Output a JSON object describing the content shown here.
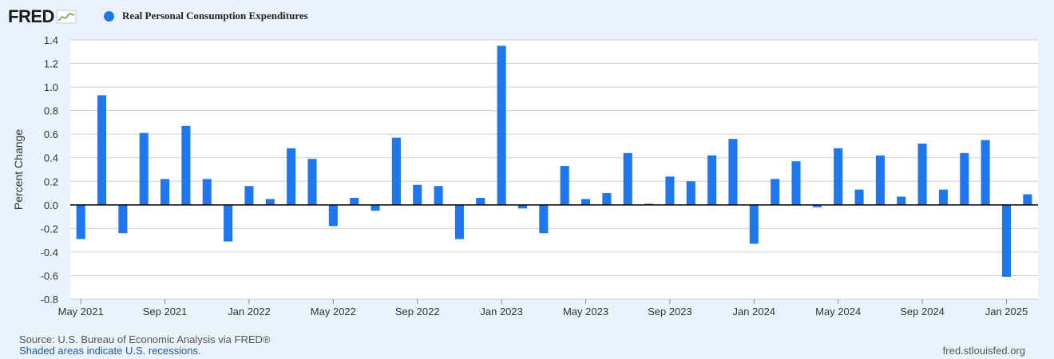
{
  "logo": {
    "text": "FRED"
  },
  "legend": {
    "label": "Real Personal Consumption Expenditures",
    "color": "#1f77f0"
  },
  "footer": {
    "source": "Source: U.S. Bureau of Economic Analysis via FRED®",
    "note": "Shaded areas indicate U.S. recessions.",
    "url": "fred.stlouisfed.org"
  },
  "chart_data": {
    "type": "bar",
    "ylabel": "Percent Change",
    "ylim": [
      -0.8,
      1.4
    ],
    "yticks": [
      1.4,
      1.2,
      1.0,
      0.8,
      0.6,
      0.4,
      0.2,
      0.0,
      -0.2,
      -0.4,
      -0.6,
      -0.8
    ],
    "ytick_labels": [
      "1.4",
      "1.2",
      "1.0",
      "0.8",
      "0.6",
      "0.4",
      "0.2",
      "0.0",
      "-0.2",
      "-0.4",
      "-0.6",
      "-0.8"
    ],
    "xtick_labels": [
      "May 2021",
      "Sep 2021",
      "Jan 2022",
      "May 2022",
      "Sep 2022",
      "Jan 2023",
      "May 2023",
      "Sep 2023",
      "Jan 2024",
      "May 2024",
      "Sep 2024",
      "Jan 2025"
    ],
    "grid": true,
    "bar_color": "#1f77f0",
    "categories": [
      "2021-05",
      "2021-06",
      "2021-07",
      "2021-08",
      "2021-09",
      "2021-10",
      "2021-11",
      "2021-12",
      "2022-01",
      "2022-02",
      "2022-03",
      "2022-04",
      "2022-05",
      "2022-06",
      "2022-07",
      "2022-08",
      "2022-09",
      "2022-10",
      "2022-11",
      "2022-12",
      "2023-01",
      "2023-02",
      "2023-03",
      "2023-04",
      "2023-05",
      "2023-06",
      "2023-07",
      "2023-08",
      "2023-09",
      "2023-10",
      "2023-11",
      "2023-12",
      "2024-01",
      "2024-02",
      "2024-03",
      "2024-04",
      "2024-05",
      "2024-06",
      "2024-07",
      "2024-08",
      "2024-09",
      "2024-10",
      "2024-11",
      "2024-12",
      "2025-01",
      "2025-02"
    ],
    "values": [
      -0.29,
      0.93,
      -0.24,
      0.61,
      0.22,
      0.67,
      0.22,
      -0.31,
      0.16,
      0.05,
      0.48,
      0.39,
      -0.18,
      0.06,
      -0.05,
      0.57,
      0.17,
      0.16,
      -0.29,
      0.06,
      1.35,
      -0.03,
      -0.24,
      0.33,
      0.05,
      0.1,
      0.44,
      0.01,
      0.24,
      0.2,
      0.42,
      0.56,
      -0.33,
      0.22,
      0.37,
      -0.02,
      0.48,
      0.13,
      0.42,
      0.07,
      0.52,
      0.13,
      0.44,
      0.55,
      -0.61,
      0.09
    ]
  }
}
